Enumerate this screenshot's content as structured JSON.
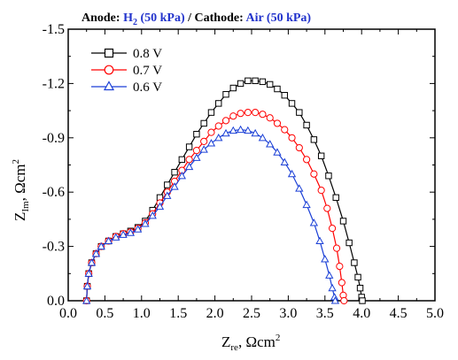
{
  "chart_data": {
    "type": "line",
    "title": {
      "anode_label": "Anode: ",
      "anode_gas": "H",
      "anode_gas_sub": "2",
      "anode_pressure": " (50 kPa)",
      "separator": " / ",
      "cathode_label": "Cathode: ",
      "cathode_gas": "Air (50 kPa)",
      "label_color": "#000000",
      "value_color": "#2233cc"
    },
    "xlabel": {
      "main": "Z",
      "sub": "re",
      "unit": ", Ωcm",
      "sup": "2"
    },
    "ylabel": {
      "main": "Z",
      "sub": "Im",
      "unit": ", Ωcm",
      "sup": "2"
    },
    "xlim": [
      0.0,
      5.0
    ],
    "ylim": [
      0.0,
      -1.5
    ],
    "xticks": [
      "0.0",
      "0.5",
      "1.0",
      "1.5",
      "2.0",
      "2.5",
      "3.0",
      "3.5",
      "4.0",
      "4.5",
      "5.0"
    ],
    "yticks": [
      "0.0",
      "-0.3",
      "-0.6",
      "-0.9",
      "-1.2",
      "-1.5"
    ],
    "grid": false,
    "legend_position": "top-left",
    "series": [
      {
        "name": "0.8 V",
        "color": "#000000",
        "marker": "square",
        "points": [
          [
            0.25,
            0.0
          ],
          [
            0.26,
            -0.08
          ],
          [
            0.28,
            -0.15
          ],
          [
            0.32,
            -0.21
          ],
          [
            0.38,
            -0.26
          ],
          [
            0.45,
            -0.3
          ],
          [
            0.55,
            -0.33
          ],
          [
            0.65,
            -0.355
          ],
          [
            0.75,
            -0.37
          ],
          [
            0.85,
            -0.385
          ],
          [
            0.95,
            -0.405
          ],
          [
            1.05,
            -0.44
          ],
          [
            1.15,
            -0.5
          ],
          [
            1.25,
            -0.57
          ],
          [
            1.35,
            -0.64
          ],
          [
            1.45,
            -0.71
          ],
          [
            1.55,
            -0.78
          ],
          [
            1.65,
            -0.85
          ],
          [
            1.75,
            -0.92
          ],
          [
            1.85,
            -0.98
          ],
          [
            1.95,
            -1.04
          ],
          [
            2.05,
            -1.09
          ],
          [
            2.15,
            -1.14
          ],
          [
            2.25,
            -1.175
          ],
          [
            2.35,
            -1.2
          ],
          [
            2.45,
            -1.215
          ],
          [
            2.55,
            -1.215
          ],
          [
            2.65,
            -1.21
          ],
          [
            2.75,
            -1.195
          ],
          [
            2.85,
            -1.17
          ],
          [
            2.95,
            -1.135
          ],
          [
            3.05,
            -1.09
          ],
          [
            3.15,
            -1.04
          ],
          [
            3.25,
            -0.97
          ],
          [
            3.35,
            -0.89
          ],
          [
            3.45,
            -0.8
          ],
          [
            3.55,
            -0.69
          ],
          [
            3.65,
            -0.57
          ],
          [
            3.75,
            -0.44
          ],
          [
            3.83,
            -0.32
          ],
          [
            3.9,
            -0.21
          ],
          [
            3.95,
            -0.13
          ],
          [
            3.98,
            -0.07
          ],
          [
            4.0,
            -0.02
          ],
          [
            4.01,
            0.0
          ]
        ]
      },
      {
        "name": "0.7 V",
        "color": "#ff0000",
        "marker": "circle",
        "points": [
          [
            0.25,
            0.0
          ],
          [
            0.26,
            -0.08
          ],
          [
            0.28,
            -0.15
          ],
          [
            0.32,
            -0.21
          ],
          [
            0.38,
            -0.26
          ],
          [
            0.45,
            -0.3
          ],
          [
            0.55,
            -0.33
          ],
          [
            0.65,
            -0.355
          ],
          [
            0.75,
            -0.37
          ],
          [
            0.85,
            -0.38
          ],
          [
            0.95,
            -0.4
          ],
          [
            1.05,
            -0.43
          ],
          [
            1.15,
            -0.48
          ],
          [
            1.25,
            -0.54
          ],
          [
            1.35,
            -0.6
          ],
          [
            1.45,
            -0.66
          ],
          [
            1.55,
            -0.72
          ],
          [
            1.65,
            -0.78
          ],
          [
            1.75,
            -0.83
          ],
          [
            1.85,
            -0.88
          ],
          [
            1.95,
            -0.93
          ],
          [
            2.05,
            -0.965
          ],
          [
            2.15,
            -0.995
          ],
          [
            2.25,
            -1.02
          ],
          [
            2.35,
            -1.035
          ],
          [
            2.45,
            -1.04
          ],
          [
            2.55,
            -1.04
          ],
          [
            2.65,
            -1.03
          ],
          [
            2.75,
            -1.01
          ],
          [
            2.85,
            -0.98
          ],
          [
            2.95,
            -0.945
          ],
          [
            3.05,
            -0.9
          ],
          [
            3.15,
            -0.845
          ],
          [
            3.25,
            -0.78
          ],
          [
            3.35,
            -0.7
          ],
          [
            3.45,
            -0.61
          ],
          [
            3.53,
            -0.51
          ],
          [
            3.6,
            -0.4
          ],
          [
            3.66,
            -0.29
          ],
          [
            3.7,
            -0.19
          ],
          [
            3.73,
            -0.1
          ],
          [
            3.75,
            -0.03
          ],
          [
            3.76,
            0.0
          ]
        ]
      },
      {
        "name": "0.6 V",
        "color": "#1a3fd6",
        "marker": "triangle",
        "points": [
          [
            0.25,
            0.0
          ],
          [
            0.26,
            -0.08
          ],
          [
            0.28,
            -0.15
          ],
          [
            0.32,
            -0.21
          ],
          [
            0.38,
            -0.26
          ],
          [
            0.45,
            -0.3
          ],
          [
            0.55,
            -0.33
          ],
          [
            0.65,
            -0.35
          ],
          [
            0.75,
            -0.365
          ],
          [
            0.85,
            -0.375
          ],
          [
            0.95,
            -0.395
          ],
          [
            1.05,
            -0.425
          ],
          [
            1.15,
            -0.47
          ],
          [
            1.25,
            -0.52
          ],
          [
            1.35,
            -0.58
          ],
          [
            1.45,
            -0.63
          ],
          [
            1.55,
            -0.69
          ],
          [
            1.65,
            -0.74
          ],
          [
            1.75,
            -0.79
          ],
          [
            1.85,
            -0.835
          ],
          [
            1.95,
            -0.87
          ],
          [
            2.05,
            -0.9
          ],
          [
            2.15,
            -0.925
          ],
          [
            2.25,
            -0.94
          ],
          [
            2.35,
            -0.945
          ],
          [
            2.45,
            -0.94
          ],
          [
            2.55,
            -0.925
          ],
          [
            2.65,
            -0.9
          ],
          [
            2.75,
            -0.865
          ],
          [
            2.85,
            -0.82
          ],
          [
            2.95,
            -0.765
          ],
          [
            3.05,
            -0.7
          ],
          [
            3.15,
            -0.62
          ],
          [
            3.25,
            -0.53
          ],
          [
            3.35,
            -0.43
          ],
          [
            3.43,
            -0.33
          ],
          [
            3.5,
            -0.23
          ],
          [
            3.56,
            -0.14
          ],
          [
            3.6,
            -0.07
          ],
          [
            3.63,
            -0.02
          ],
          [
            3.64,
            0.0
          ]
        ]
      }
    ]
  }
}
